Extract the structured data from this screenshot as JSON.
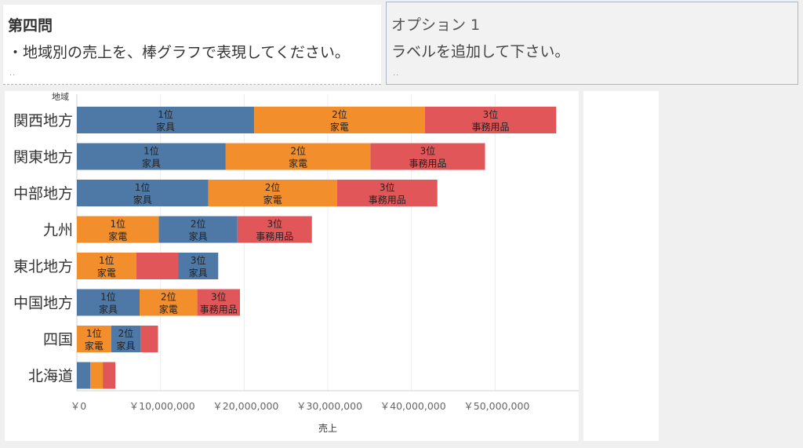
{
  "question": {
    "title": "第四問",
    "body": "・地域別の売上を、棒グラフで表現してください。",
    "dots": ".."
  },
  "option": {
    "title": "オプション 1",
    "body": "ラベルを追加して下さい。",
    "dots": ".."
  },
  "colors": {
    "家具": "#4e79a7",
    "家電": "#f28e2b",
    "事務用品": "#e15759"
  },
  "chart_data": {
    "type": "bar",
    "orientation": "horizontal",
    "stacked": true,
    "row_header": "地域",
    "xlabel": "売上",
    "xlim": [
      0,
      60000000
    ],
    "xticks": [
      0,
      10000000,
      20000000,
      30000000,
      40000000,
      50000000
    ],
    "xtick_labels": [
      "￥0",
      "￥10,000,000",
      "￥20,000,000",
      "￥30,000,000",
      "￥40,000,000",
      "￥50,000,000"
    ],
    "grid": true,
    "categories": [
      "関西地方",
      "関東地方",
      "中部地方",
      "九州",
      "東北地方",
      "中国地方",
      "四国",
      "北海道"
    ],
    "rows": [
      {
        "region": "関西地方",
        "segments": [
          {
            "category": "家具",
            "value": 21200000,
            "rank_label": "1位",
            "category_label": "家具"
          },
          {
            "category": "家電",
            "value": 20400000,
            "rank_label": "2位",
            "category_label": "家電"
          },
          {
            "category": "事務用品",
            "value": 15700000,
            "rank_label": "3位",
            "category_label": "事務用品"
          }
        ]
      },
      {
        "region": "関東地方",
        "segments": [
          {
            "category": "家具",
            "value": 17800000,
            "rank_label": "1位",
            "category_label": "家具"
          },
          {
            "category": "家電",
            "value": 17300000,
            "rank_label": "2位",
            "category_label": "家電"
          },
          {
            "category": "事務用品",
            "value": 13700000,
            "rank_label": "3位",
            "category_label": "事務用品"
          }
        ]
      },
      {
        "region": "中部地方",
        "segments": [
          {
            "category": "家具",
            "value": 15700000,
            "rank_label": "1位",
            "category_label": "家具"
          },
          {
            "category": "家電",
            "value": 15400000,
            "rank_label": "2位",
            "category_label": "家電"
          },
          {
            "category": "事務用品",
            "value": 12000000,
            "rank_label": "3位",
            "category_label": "事務用品"
          }
        ]
      },
      {
        "region": "九州",
        "segments": [
          {
            "category": "家電",
            "value": 9800000,
            "rank_label": "1位",
            "category_label": "家電"
          },
          {
            "category": "家具",
            "value": 9400000,
            "rank_label": "2位",
            "category_label": "家具"
          },
          {
            "category": "事務用品",
            "value": 8900000,
            "rank_label": "3位",
            "category_label": "事務用品"
          }
        ]
      },
      {
        "region": "東北地方",
        "segments": [
          {
            "category": "家電",
            "value": 7100000,
            "rank_label": "1位",
            "category_label": "家電"
          },
          {
            "category": "事務用品",
            "value": 5000000,
            "rank_label": "",
            "category_label": ""
          },
          {
            "category": "家具",
            "value": 4800000,
            "rank_label": "3位",
            "category_label": "家具"
          }
        ]
      },
      {
        "region": "中国地方",
        "segments": [
          {
            "category": "家具",
            "value": 7500000,
            "rank_label": "1位",
            "category_label": "家具"
          },
          {
            "category": "家電",
            "value": 6900000,
            "rank_label": "2位",
            "category_label": "家電"
          },
          {
            "category": "事務用品",
            "value": 5100000,
            "rank_label": "3位",
            "category_label": "事務用品"
          }
        ]
      },
      {
        "region": "四国",
        "segments": [
          {
            "category": "家電",
            "value": 4100000,
            "rank_label": "1位",
            "category_label": "家電"
          },
          {
            "category": "家具",
            "value": 3500000,
            "rank_label": "2位",
            "category_label": "家具"
          },
          {
            "category": "事務用品",
            "value": 2100000,
            "rank_label": "",
            "category_label": ""
          }
        ]
      },
      {
        "region": "北海道",
        "segments": [
          {
            "category": "家具",
            "value": 1600000,
            "rank_label": "",
            "category_label": ""
          },
          {
            "category": "家電",
            "value": 1500000,
            "rank_label": "",
            "category_label": ""
          },
          {
            "category": "事務用品",
            "value": 1500000,
            "rank_label": "",
            "category_label": ""
          }
        ]
      }
    ]
  }
}
